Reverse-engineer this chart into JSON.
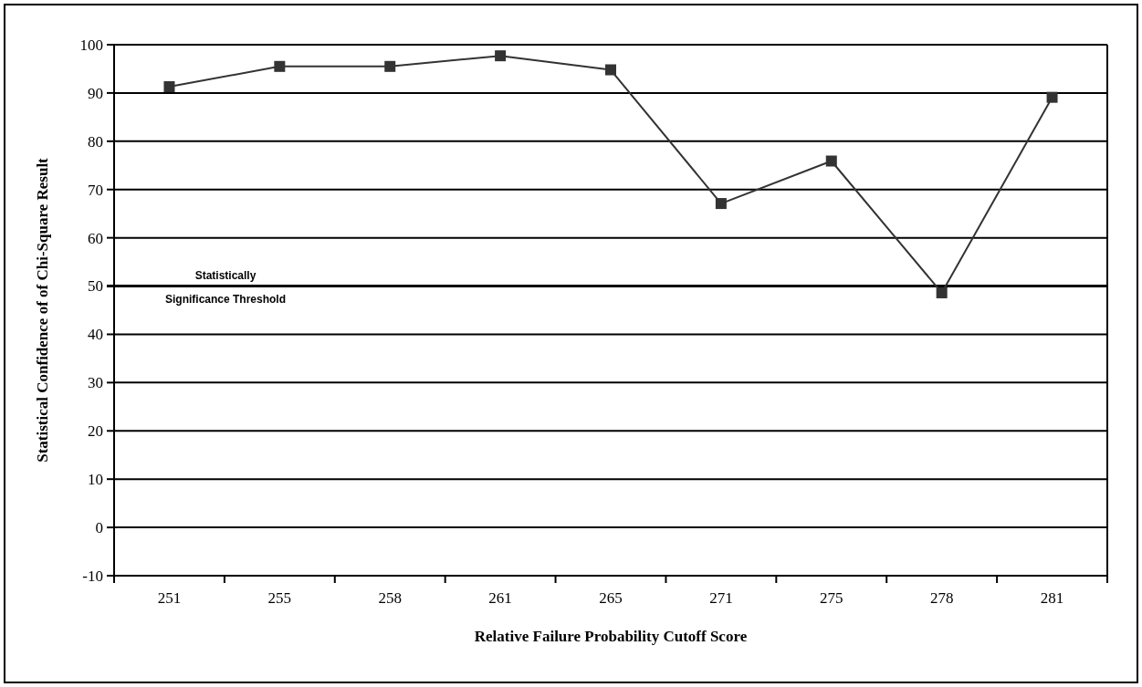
{
  "chart_data": {
    "type": "line",
    "xlabel": "Relative Failure Probability Cutoff Score",
    "ylabel": "Statistical Confidence of of Chi-Square Result",
    "categories": [
      "251",
      "255",
      "258",
      "261",
      "265",
      "271",
      "275",
      "278",
      "281"
    ],
    "series": [
      {
        "color": "#333333",
        "values": [
          91.3,
          95.5,
          95.5,
          97.7,
          94.8,
          67.1,
          75.9,
          48.6,
          89.1
        ]
      }
    ],
    "ylim": [
      -10,
      100
    ],
    "yticks": [
      -10,
      0,
      10,
      20,
      30,
      40,
      50,
      60,
      70,
      80,
      90,
      100
    ],
    "grid": "y",
    "marker": "square",
    "ref_lines": [
      {
        "axis": "y",
        "value": 50,
        "label": "Statistically Significance Threshold",
        "color": "#000000"
      }
    ]
  }
}
